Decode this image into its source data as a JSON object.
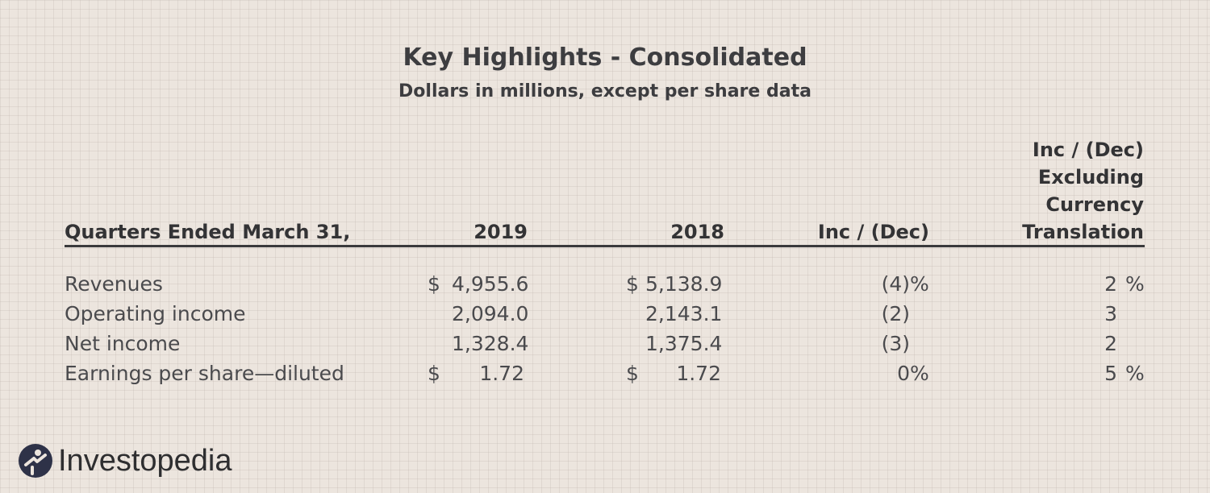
{
  "title": "Key Highlights - Consolidated",
  "subtitle": "Dollars in millions, except per share data",
  "header": {
    "label": "Quarters Ended March 31,",
    "col_2019": "2019",
    "col_2018": "2018",
    "col_inc": "Inc / (Dec)",
    "col_excl": "Inc / (Dec)\nExcluding\nCurrency\nTranslation"
  },
  "rows": [
    {
      "label": "Revenues",
      "dollar_2019": "$",
      "val_2019": "4,955.6",
      "dollar_2018": "$",
      "val_2018": "5,138.9",
      "inc": "(4)",
      "inc_pct": "%",
      "excl": "2",
      "excl_pct": "%"
    },
    {
      "label": "Operating income",
      "dollar_2019": "",
      "val_2019": "2,094.0",
      "dollar_2018": "",
      "val_2018": "2,143.1",
      "inc": "(2)",
      "inc_pct": "",
      "excl": "3",
      "excl_pct": ""
    },
    {
      "label": "Net income",
      "dollar_2019": "",
      "val_2019": "1,328.4",
      "dollar_2018": "",
      "val_2018": "1,375.4",
      "inc": "(3)",
      "inc_pct": "",
      "excl": "2",
      "excl_pct": ""
    },
    {
      "label": "Earnings per share—diluted",
      "dollar_2019": "$",
      "val_2019": "1.72",
      "dollar_2018": "$",
      "val_2018": "1.72",
      "inc": "0",
      "inc_pct": "%",
      "excl": "5",
      "excl_pct": "%"
    }
  ],
  "logo": {
    "text": "Investopedia",
    "icon": "investopedia-logo-icon",
    "color": "#2e3248"
  }
}
